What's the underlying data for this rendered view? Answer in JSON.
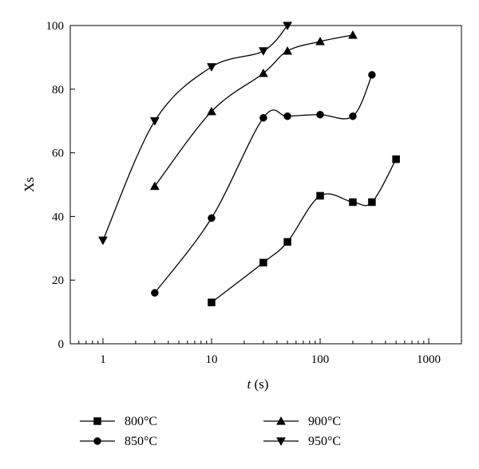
{
  "chart_data": {
    "type": "line",
    "title": "",
    "xlabel_var": "t",
    "xlabel_unit": " (s)",
    "ylabel": "Xs",
    "xscale": "log",
    "xlim": [
      0.5,
      2000
    ],
    "ylim": [
      0,
      100
    ],
    "xticks": [
      1,
      10,
      100,
      1000
    ],
    "xtick_labels": [
      "1",
      "10",
      "100",
      "1000"
    ],
    "yticks": [
      0,
      20,
      40,
      60,
      80,
      100
    ],
    "ytick_labels": [
      "0",
      "20",
      "40",
      "60",
      "80",
      "100"
    ],
    "grid": false,
    "legend_position": "bottom",
    "series": [
      {
        "name": "800°C",
        "marker": "square",
        "x": [
          10,
          30,
          50,
          100,
          200,
          300,
          500
        ],
        "y": [
          13,
          25.5,
          32,
          46.5,
          44.5,
          44.5,
          58
        ]
      },
      {
        "name": "850°C",
        "marker": "circle",
        "x": [
          3,
          10,
          30,
          50,
          100,
          200,
          300
        ],
        "y": [
          16,
          39.5,
          71,
          71.5,
          72,
          71.5,
          84.5
        ]
      },
      {
        "name": "900°C",
        "marker": "triangle-up",
        "x": [
          3,
          10,
          30,
          50,
          100,
          200
        ],
        "y": [
          49.5,
          73,
          85,
          92,
          95,
          97
        ]
      },
      {
        "name": "950°C",
        "marker": "triangle-down",
        "x": [
          1,
          3,
          10,
          30,
          50
        ],
        "y": [
          32.5,
          70,
          87,
          92,
          100
        ]
      }
    ]
  }
}
